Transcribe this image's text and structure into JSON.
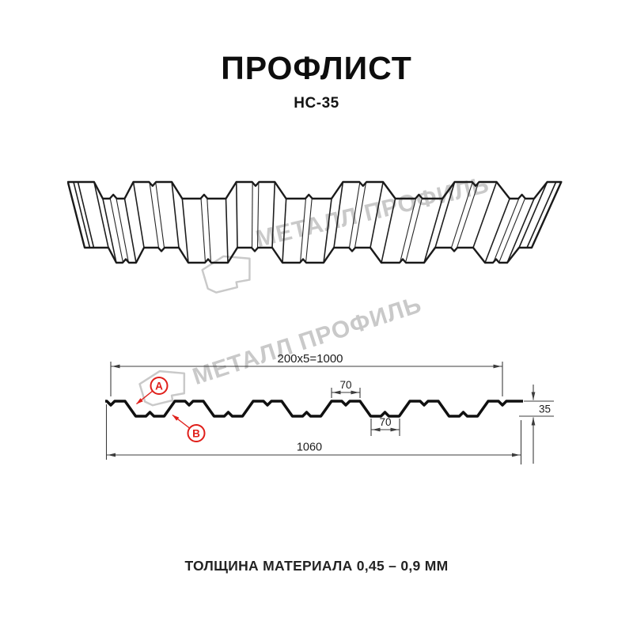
{
  "header": {
    "title": "ПРОФЛИСТ",
    "subtitle": "НС-35"
  },
  "watermark": {
    "brand": "МЕТАЛЛ ПРОФИЛЬ",
    "color": "#c9c9c9"
  },
  "cross_section": {
    "dim_pitch": "200x5=1000",
    "dim_crest_width": "70",
    "dim_valley_width": "70",
    "dim_height": "35",
    "dim_overall_width": "1060",
    "marker_a": "A",
    "marker_b": "B",
    "marker_color": "#e01f1a"
  },
  "footer": {
    "thickness_note": "ТОЛЩИНА МАТЕРИАЛА 0,45 – 0,9 ММ"
  }
}
